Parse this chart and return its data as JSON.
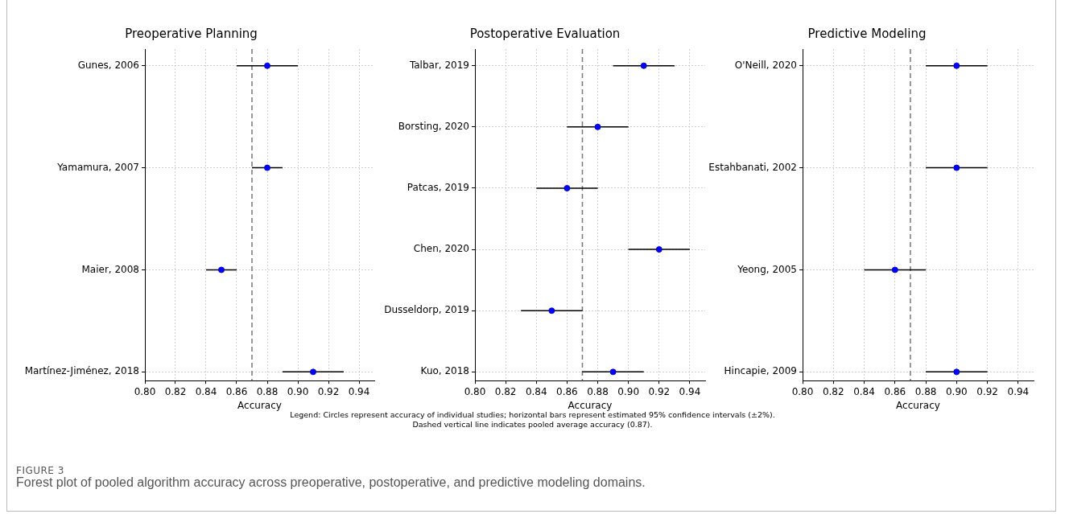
{
  "chart_data": [
    {
      "type": "scatter",
      "title": "Preoperative Planning",
      "xlabel": "Accuracy",
      "categories": [
        "Gunes, 2006",
        "Yamamura, 2007",
        "Maier, 2008",
        "Martínez-Jiménez, 2018"
      ],
      "orientation": "horizontal",
      "values": [
        0.88,
        0.88,
        0.85,
        0.91
      ],
      "errors": [
        0.02,
        0.01,
        0.01,
        0.02
      ],
      "color": "#0000ff",
      "marker": "circle",
      "grid": true,
      "xlim": [
        0.8,
        0.95
      ],
      "xticks": [
        {
          "value": 0.8,
          "label": "0.80"
        },
        {
          "value": 0.82,
          "label": "0.82"
        },
        {
          "value": 0.84,
          "label": "0.84"
        },
        {
          "value": 0.86,
          "label": "0.86"
        },
        {
          "value": 0.88,
          "label": "0.88"
        },
        {
          "value": 0.9,
          "label": "0.90"
        },
        {
          "value": 0.92,
          "label": "0.92"
        },
        {
          "value": 0.94,
          "label": "0.94"
        }
      ],
      "ref_lines": [
        {
          "axis": "x",
          "value": 0.87,
          "color": "#777777",
          "line_style": "dashed"
        }
      ]
    },
    {
      "type": "scatter",
      "title": "Postoperative Evaluation",
      "xlabel": "Accuracy",
      "categories": [
        "Talbar, 2019",
        "Borsting, 2020",
        "Patcas, 2019",
        "Chen, 2020",
        "Dusseldorp, 2019",
        "Kuo, 2018"
      ],
      "orientation": "horizontal",
      "values": [
        0.91,
        0.88,
        0.86,
        0.92,
        0.85,
        0.89
      ],
      "errors": [
        0.02,
        0.02,
        0.02,
        0.02,
        0.02,
        0.02
      ],
      "color": "#0000ff",
      "marker": "circle",
      "grid": true,
      "xlim": [
        0.8,
        0.95
      ],
      "xticks": [
        {
          "value": 0.8,
          "label": "0.80"
        },
        {
          "value": 0.82,
          "label": "0.82"
        },
        {
          "value": 0.84,
          "label": "0.84"
        },
        {
          "value": 0.86,
          "label": "0.86"
        },
        {
          "value": 0.88,
          "label": "0.88"
        },
        {
          "value": 0.9,
          "label": "0.90"
        },
        {
          "value": 0.92,
          "label": "0.92"
        },
        {
          "value": 0.94,
          "label": "0.94"
        }
      ],
      "ref_lines": [
        {
          "axis": "x",
          "value": 0.87,
          "color": "#777777",
          "line_style": "dashed"
        }
      ],
      "annotations": [
        "Legend: Circles represent accuracy of individual studies; horizontal bars represent estimated 95% confidence intervals (±2%).",
        "Dashed vertical line indicates pooled average accuracy (0.87).",
        "FIGURE 3",
        "Forest plot of pooled algorithm accuracy across preoperative, postoperative, and predictive modeling domains."
      ]
    },
    {
      "type": "scatter",
      "title": "Predictive Modeling",
      "xlabel": "Accuracy",
      "categories": [
        "O'Neill, 2020",
        "Estahbanati, 2002",
        "Yeong, 2005",
        "Hincapie, 2009"
      ],
      "orientation": "horizontal",
      "values": [
        0.9,
        0.9,
        0.86,
        0.9
      ],
      "errors": [
        0.02,
        0.02,
        0.02,
        0.02
      ],
      "color": "#0000ff",
      "marker": "circle",
      "grid": true,
      "xlim": [
        0.8,
        0.95
      ],
      "xticks": [
        {
          "value": 0.8,
          "label": "0.80"
        },
        {
          "value": 0.82,
          "label": "0.82"
        },
        {
          "value": 0.84,
          "label": "0.84"
        },
        {
          "value": 0.86,
          "label": "0.86"
        },
        {
          "value": 0.88,
          "label": "0.88"
        },
        {
          "value": 0.9,
          "label": "0.90"
        },
        {
          "value": 0.92,
          "label": "0.92"
        },
        {
          "value": 0.94,
          "label": "0.94"
        }
      ],
      "ref_lines": [
        {
          "axis": "x",
          "value": 0.87,
          "color": "#777777",
          "line_style": "dashed"
        }
      ]
    }
  ]
}
